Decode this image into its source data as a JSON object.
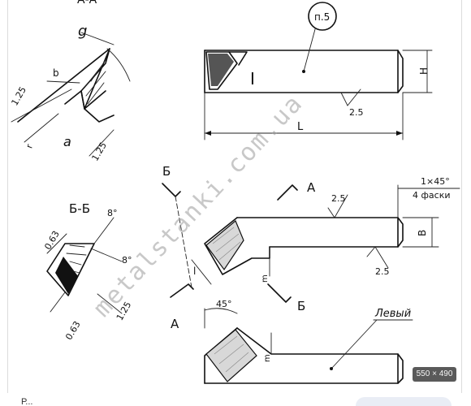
{
  "drawing": {
    "section_aa": "А-А",
    "section_bb": "Б-Б",
    "label_g": "g",
    "label_b": "b",
    "label_a": "a",
    "dim_125_top": "1.25",
    "dim_r": "r",
    "dim_125_bottom": "1.25",
    "callout_p5": "п.5",
    "roman_one": "I",
    "dim_h": "H",
    "dim_l": "L",
    "rough_25_top": "2.5",
    "chamfer": "1×45°",
    "chamfer_count": "4 фаски",
    "rough_25_mid": "2.5",
    "rough_25_bottom": "2.5",
    "dim_b": "B",
    "dim_m_mid": "m",
    "letter_b_cut_top": "Б",
    "letter_a_cut_top": "А",
    "letter_a_cut_bottom": "А",
    "letter_b_cut_bottom": "Б",
    "angle_8_top": "8°",
    "angle_8_mid": "8°",
    "dim_063_top": "0.63",
    "dim_063_bottom": "0.63",
    "dim_125_bb": "1.25",
    "dim_l_small": "l",
    "angle_45": "45°",
    "variant_left": "Левый",
    "dim_m_bottom": "m",
    "watermark": "metalstanki.com.ua"
  },
  "badge": {
    "size": "550 × 490"
  },
  "caption": {
    "text": "Р..."
  }
}
